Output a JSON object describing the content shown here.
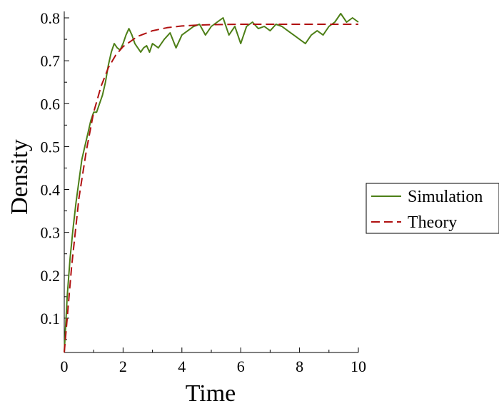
{
  "chart_data": {
    "type": "line",
    "xlabel": "Time",
    "ylabel": "Density",
    "xlim": [
      0,
      10
    ],
    "ylim": [
      0.02,
      0.815
    ],
    "xticks": [
      0,
      2,
      4,
      6,
      8,
      10
    ],
    "xtick_labels": [
      "0",
      "2",
      "4",
      "6",
      "8",
      "10"
    ],
    "yticks": [
      0.1,
      0.2,
      0.3,
      0.4,
      0.5,
      0.6,
      0.7,
      0.8
    ],
    "ytick_labels": [
      "0.1",
      "0.2",
      "0.3",
      "0.4",
      "0.5",
      "0.6",
      "0.7",
      "0.8"
    ],
    "grid": false,
    "legend_position": "right",
    "series": [
      {
        "name": "Simulation",
        "style": "solid",
        "color": "#4d7f17",
        "x": [
          0,
          0.1,
          0.2,
          0.3,
          0.4,
          0.5,
          0.6,
          0.7,
          0.8,
          0.9,
          1.0,
          1.1,
          1.2,
          1.3,
          1.4,
          1.5,
          1.6,
          1.7,
          1.8,
          1.9,
          2.0,
          2.1,
          2.2,
          2.3,
          2.4,
          2.5,
          2.6,
          2.7,
          2.8,
          2.9,
          3.0,
          3.2,
          3.4,
          3.6,
          3.8,
          4.0,
          4.2,
          4.4,
          4.6,
          4.8,
          5.0,
          5.2,
          5.4,
          5.6,
          5.8,
          6.0,
          6.2,
          6.4,
          6.6,
          6.8,
          7.0,
          7.2,
          7.4,
          7.6,
          7.8,
          8.0,
          8.2,
          8.4,
          8.6,
          8.8,
          9.0,
          9.2,
          9.4,
          9.6,
          9.8,
          10.0
        ],
        "y": [
          0.02,
          0.15,
          0.24,
          0.31,
          0.37,
          0.42,
          0.47,
          0.5,
          0.53,
          0.56,
          0.58,
          0.58,
          0.6,
          0.62,
          0.65,
          0.69,
          0.72,
          0.74,
          0.73,
          0.725,
          0.74,
          0.76,
          0.775,
          0.76,
          0.74,
          0.73,
          0.72,
          0.73,
          0.735,
          0.72,
          0.74,
          0.73,
          0.75,
          0.765,
          0.73,
          0.76,
          0.77,
          0.78,
          0.785,
          0.76,
          0.78,
          0.79,
          0.8,
          0.76,
          0.78,
          0.74,
          0.78,
          0.79,
          0.775,
          0.78,
          0.77,
          0.785,
          0.78,
          0.77,
          0.76,
          0.75,
          0.74,
          0.76,
          0.77,
          0.76,
          0.78,
          0.79,
          0.81,
          0.79,
          0.8,
          0.79
        ]
      },
      {
        "name": "Theory",
        "style": "dashed",
        "color": "#b01010",
        "x": [
          0,
          0.25,
          0.5,
          0.75,
          1.0,
          1.25,
          1.5,
          1.75,
          2.0,
          2.5,
          3.0,
          3.5,
          4.0,
          4.5,
          5.0,
          6.0,
          7.0,
          8.0,
          9.0,
          10.0
        ],
        "y": [
          0.02,
          0.22,
          0.38,
          0.49,
          0.58,
          0.64,
          0.684,
          0.713,
          0.733,
          0.757,
          0.77,
          0.777,
          0.781,
          0.783,
          0.784,
          0.785,
          0.785,
          0.785,
          0.785,
          0.785
        ]
      }
    ]
  }
}
